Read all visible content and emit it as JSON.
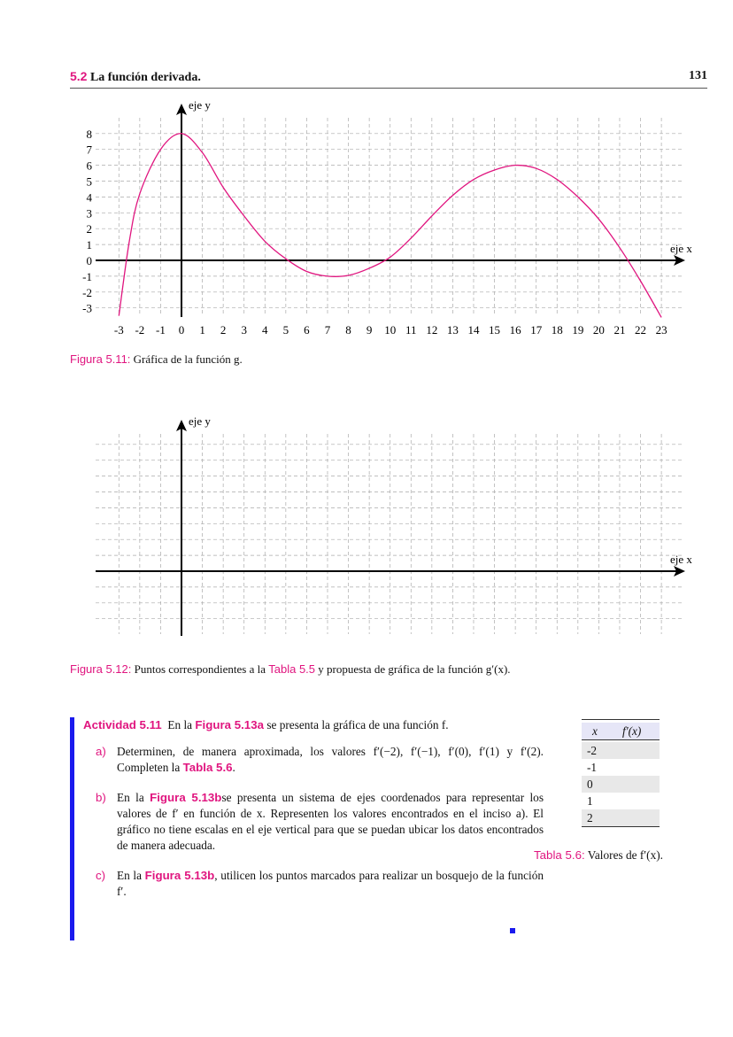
{
  "header": {
    "section_number": "5.2",
    "section_title": "La función derivada.",
    "page_number": "131"
  },
  "figure1": {
    "label": "Figura 5.11:",
    "caption": "Gráfica de la función g."
  },
  "figure2": {
    "label": "Figura 5.12:",
    "caption_pre": "Puntos correspondientes a la",
    "ref": "Tabla 5.5",
    "caption_post": "y propuesta de gráfica de la función g′(x)."
  },
  "chart_data": [
    {
      "type": "line",
      "xlabel": "eje x",
      "ylabel": "eje y",
      "xlim": [
        -3,
        23
      ],
      "ylim": [
        -3.6,
        9
      ],
      "xticks": [
        "-3",
        "-2",
        "-1",
        "0",
        "1",
        "2",
        "3",
        "4",
        "5",
        "6",
        "7",
        "8",
        "9",
        "10",
        "11",
        "12",
        "13",
        "14",
        "15",
        "16",
        "17",
        "18",
        "19",
        "20",
        "21",
        "22",
        "23"
      ],
      "yticks": [
        "-3",
        "-2",
        "-1",
        "0",
        "1",
        "2",
        "3",
        "4",
        "5",
        "6",
        "7",
        "8"
      ],
      "grid": true,
      "color": "#e0157f",
      "series": [
        {
          "x": [
            -3,
            -2.5,
            -2,
            -1,
            0,
            1,
            2,
            3,
            4,
            5,
            6,
            7,
            8,
            9,
            10,
            11,
            12,
            13,
            14,
            15,
            16,
            17,
            18,
            19,
            20,
            21,
            22,
            23
          ],
          "y": [
            -3.5,
            1.2,
            4.2,
            7,
            8,
            6.8,
            4.6,
            2.8,
            1.2,
            0.1,
            -0.7,
            -1,
            -0.95,
            -0.5,
            0.2,
            1.4,
            2.8,
            4.1,
            5.1,
            5.7,
            6,
            5.8,
            5.1,
            4,
            2.6,
            0.8,
            -1.3,
            -3.6
          ]
        }
      ]
    },
    {
      "type": "line",
      "xlabel": "eje x",
      "ylabel": "eje y",
      "grid": true,
      "series": []
    }
  ],
  "activity": {
    "title": "Actividad 5.11",
    "intro_pre": "En la",
    "intro_ref": "Figura 5.13a",
    "intro_post": "se presenta la gráfica de una función f.",
    "items": [
      {
        "label": "a)",
        "pre": "Determinen, de manera aproximada, los valores f′(−2), f′(−1), f′(0), f′(1) y f′(2). Completen la",
        "ref": "Tabla 5.6",
        "post": "."
      },
      {
        "label": "b)",
        "pre": "En la",
        "ref": "Figura 5.13b",
        "post": "se presenta un sistema de ejes coordenados para representar los valores de f′ en función de x. Representen los valores encontrados en el inciso a). El gráfico no tiene escalas en el eje vertical para que se puedan ubicar los datos encontrados de manera adecuada."
      },
      {
        "label": "c)",
        "pre": "En la",
        "ref": "Figura 5.13b",
        "post": ", utilicen los puntos marcados para realizar un bosquejo de la función f′."
      }
    ]
  },
  "table": {
    "headers": [
      "x",
      "f′(x)"
    ],
    "rows": [
      "-2",
      "-1",
      "0",
      "1",
      "2"
    ],
    "label": "Tabla 5.6:",
    "caption": "Valores de f′(x)."
  },
  "colors": {
    "accent": "#e0157f",
    "bar": "#1a1aee"
  }
}
